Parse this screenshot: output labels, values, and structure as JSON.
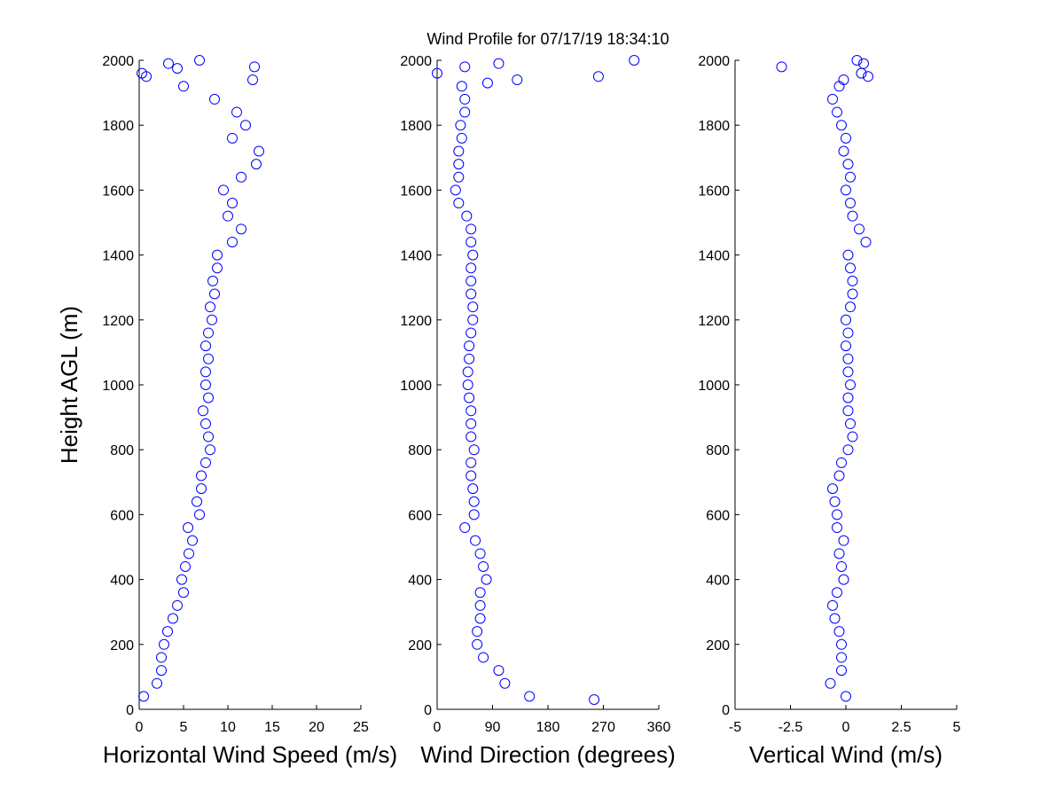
{
  "chart_data": [
    {
      "type": "scatter",
      "color": "#0000ff",
      "xlabel": "Horizontal Wind Speed (m/s)",
      "ylabel": "Height AGL (m)",
      "xlim": [
        0,
        25
      ],
      "xticks": [
        0,
        5,
        10,
        15,
        20,
        25
      ],
      "ylim": [
        0,
        2000
      ],
      "yticks": [
        0,
        200,
        400,
        600,
        800,
        1000,
        1200,
        1400,
        1600,
        1800,
        2000
      ],
      "x": [
        0.5,
        2,
        2.5,
        2.5,
        2.8,
        3.2,
        3.8,
        4.3,
        5,
        4.8,
        5.2,
        5.6,
        6,
        5.5,
        6.8,
        6.5,
        7,
        7,
        7.5,
        8,
        7.8,
        7.5,
        7.2,
        7.8,
        7.5,
        7.5,
        7.8,
        7.5,
        7.8,
        8.2,
        8,
        8.5,
        8.3,
        8.8,
        8.8,
        10.5,
        11.5,
        10,
        10.5,
        9.5,
        11.5,
        13.2,
        13.5,
        10.5,
        12,
        11,
        8.5,
        5,
        0.3,
        6.8,
        13,
        3.3,
        12.8,
        0.8,
        4.3
      ],
      "y": [
        40,
        80,
        120,
        160,
        200,
        240,
        280,
        320,
        360,
        400,
        440,
        480,
        520,
        560,
        600,
        640,
        680,
        720,
        760,
        800,
        840,
        880,
        920,
        960,
        1000,
        1040,
        1080,
        1120,
        1160,
        1200,
        1240,
        1280,
        1320,
        1360,
        1400,
        1440,
        1480,
        1520,
        1560,
        1600,
        1640,
        1680,
        1720,
        1760,
        1800,
        1840,
        1880,
        1920,
        1960,
        2000,
        1980,
        1990,
        1940,
        1950,
        1975
      ]
    },
    {
      "type": "scatter",
      "color": "#0000ff",
      "title": "Wind Profile for  07/17/19 18:34:10",
      "xlabel": "Wind Direction (degrees)",
      "xlim": [
        0,
        360
      ],
      "xticks": [
        0,
        90,
        180,
        270,
        360
      ],
      "ylim": [
        0,
        2000
      ],
      "yticks": [
        0,
        200,
        400,
        600,
        800,
        1000,
        1200,
        1400,
        1600,
        1800,
        2000
      ],
      "x": [
        150,
        110,
        100,
        75,
        65,
        65,
        70,
        70,
        70,
        80,
        75,
        70,
        62,
        45,
        60,
        60,
        58,
        55,
        55,
        60,
        55,
        55,
        55,
        52,
        50,
        50,
        52,
        52,
        55,
        58,
        58,
        55,
        55,
        55,
        58,
        55,
        55,
        48,
        35,
        30,
        35,
        35,
        35,
        40,
        38,
        45,
        45,
        40,
        0,
        320,
        255,
        262,
        130,
        45,
        100,
        82
      ],
      "y": [
        40,
        80,
        120,
        160,
        200,
        240,
        280,
        320,
        360,
        400,
        440,
        480,
        520,
        560,
        600,
        640,
        680,
        720,
        760,
        800,
        840,
        880,
        920,
        960,
        1000,
        1040,
        1080,
        1120,
        1160,
        1200,
        1240,
        1280,
        1320,
        1360,
        1400,
        1440,
        1480,
        1520,
        1560,
        1600,
        1640,
        1680,
        1720,
        1760,
        1800,
        1840,
        1880,
        1920,
        1960,
        2000,
        30,
        1950,
        1940,
        1980,
        1990,
        1930
      ]
    },
    {
      "type": "scatter",
      "color": "#0000ff",
      "xlabel": "Vertical Wind (m/s)",
      "xlim": [
        -5,
        5
      ],
      "xticks": [
        -5,
        -2.5,
        0,
        2.5,
        5
      ],
      "ylim": [
        0,
        2000
      ],
      "yticks": [
        0,
        200,
        400,
        600,
        800,
        1000,
        1200,
        1400,
        1600,
        1800,
        2000
      ],
      "x": [
        0,
        -0.7,
        -0.2,
        -0.2,
        -0.2,
        -0.3,
        -0.5,
        -0.6,
        -0.4,
        -0.1,
        -0.2,
        -0.3,
        -0.1,
        -0.4,
        -0.4,
        -0.5,
        -0.6,
        -0.3,
        -0.2,
        0.1,
        0.3,
        0.2,
        0.1,
        0.1,
        0.2,
        0.1,
        0.1,
        0,
        0.1,
        0,
        0.2,
        0.3,
        0.3,
        0.2,
        0.1,
        0.9,
        0.6,
        0.3,
        0.2,
        0,
        0.2,
        0.1,
        -0.1,
        0,
        -0.2,
        -0.4,
        -0.6,
        -0.3,
        0.7,
        0.5,
        -2.9,
        1,
        -0.1,
        0.8
      ],
      "y": [
        40,
        80,
        120,
        160,
        200,
        240,
        280,
        320,
        360,
        400,
        440,
        480,
        520,
        560,
        600,
        640,
        680,
        720,
        760,
        800,
        840,
        880,
        920,
        960,
        1000,
        1040,
        1080,
        1120,
        1160,
        1200,
        1240,
        1280,
        1320,
        1360,
        1400,
        1440,
        1480,
        1520,
        1560,
        1600,
        1640,
        1680,
        1720,
        1760,
        1800,
        1840,
        1880,
        1920,
        1960,
        2000,
        1980,
        1950,
        1940,
        1990
      ]
    }
  ]
}
